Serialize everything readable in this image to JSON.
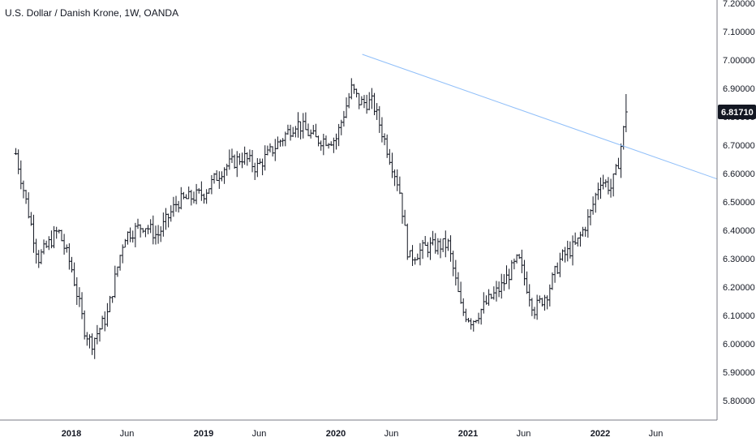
{
  "header": {
    "title": "U.S. Dollar / Danish Krone, 1W, OANDA"
  },
  "price_badge": {
    "value": "6.81710"
  },
  "colors": {
    "bar": "#131722",
    "trendline": "#90bff9",
    "badge_bg": "#131722",
    "badge_text": "#ffffff",
    "axis_text": "#131722"
  },
  "chart_data": {
    "type": "ohlc-bar",
    "title": "U.S. Dollar / Danish Krone, 1W, OANDA",
    "xlabel": "",
    "ylabel": "",
    "ylim": [
      5.72,
      7.25
    ],
    "yticks": [
      "7.20000",
      "7.10000",
      "7.00000",
      "6.90000",
      "6.80000",
      "6.70000",
      "6.60000",
      "6.50000",
      "6.40000",
      "6.30000",
      "6.20000",
      "6.10000",
      "6.00000",
      "5.90000",
      "5.80000"
    ],
    "xticks": [
      "2018",
      "Jun",
      "2019",
      "Jun",
      "2020",
      "Jun",
      "2021",
      "Jun",
      "2022",
      "Jun"
    ],
    "current_price": 6.8171,
    "trendline": {
      "from": [
        2020.2,
        7.02
      ],
      "to": [
        2022.95,
        6.57
      ]
    },
    "weekly_closes_approx": [
      {
        "t": 2017.58,
        "close": 6.67
      },
      {
        "t": 2017.75,
        "close": 6.3
      },
      {
        "t": 2017.9,
        "close": 6.4
      },
      {
        "t": 2018.0,
        "close": 6.27
      },
      {
        "t": 2018.1,
        "close": 6.05
      },
      {
        "t": 2018.15,
        "close": 6.0
      },
      {
        "t": 2018.27,
        "close": 6.1
      },
      {
        "t": 2018.4,
        "close": 6.38
      },
      {
        "t": 2018.55,
        "close": 6.42
      },
      {
        "t": 2018.65,
        "close": 6.38
      },
      {
        "t": 2018.8,
        "close": 6.5
      },
      {
        "t": 2019.0,
        "close": 6.53
      },
      {
        "t": 2019.15,
        "close": 6.62
      },
      {
        "t": 2019.3,
        "close": 6.66
      },
      {
        "t": 2019.4,
        "close": 6.62
      },
      {
        "t": 2019.55,
        "close": 6.7
      },
      {
        "t": 2019.7,
        "close": 6.78
      },
      {
        "t": 2019.85,
        "close": 6.72
      },
      {
        "t": 2020.0,
        "close": 6.72
      },
      {
        "t": 2020.12,
        "close": 6.9
      },
      {
        "t": 2020.18,
        "close": 6.85
      },
      {
        "t": 2020.28,
        "close": 6.85
      },
      {
        "t": 2020.38,
        "close": 6.7
      },
      {
        "t": 2020.48,
        "close": 6.55
      },
      {
        "t": 2020.55,
        "close": 6.3
      },
      {
        "t": 2020.68,
        "close": 6.34
      },
      {
        "t": 2020.85,
        "close": 6.35
      },
      {
        "t": 2020.95,
        "close": 6.12
      },
      {
        "t": 2021.03,
        "close": 6.08
      },
      {
        "t": 2021.15,
        "close": 6.15
      },
      {
        "t": 2021.25,
        "close": 6.2
      },
      {
        "t": 2021.38,
        "close": 6.3
      },
      {
        "t": 2021.5,
        "close": 6.12
      },
      {
        "t": 2021.6,
        "close": 6.18
      },
      {
        "t": 2021.7,
        "close": 6.3
      },
      {
        "t": 2021.82,
        "close": 6.35
      },
      {
        "t": 2021.92,
        "close": 6.45
      },
      {
        "t": 2022.0,
        "close": 6.58
      },
      {
        "t": 2022.08,
        "close": 6.55
      },
      {
        "t": 2022.13,
        "close": 6.62
      },
      {
        "t": 2022.2,
        "close": 6.82
      }
    ]
  }
}
